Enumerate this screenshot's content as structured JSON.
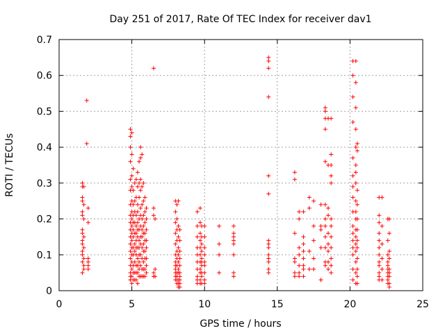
{
  "chart_data": {
    "type": "scatter",
    "title": "Day 251 of 2017, Rate Of TEC Index for receiver dav1",
    "xlabel": "GPS time / hours",
    "ylabel": "ROTI / TECUs",
    "xlim": [
      0,
      25
    ],
    "ylim": [
      0,
      0.7
    ],
    "x_ticks": [
      "0",
      "5",
      "10",
      "15",
      "20",
      "25"
    ],
    "y_ticks": [
      "0",
      "0.1",
      "0.2",
      "0.3",
      "0.4",
      "0.5",
      "0.6",
      "0.7"
    ],
    "grid": true,
    "marker": "+",
    "marker_color": "#ff0000",
    "x": [
      1.6,
      1.6,
      1.6,
      1.6,
      1.6,
      1.6,
      1.6,
      1.6,
      1.6,
      1.6,
      1.6,
      1.6,
      1.6,
      1.6,
      1.7,
      1.7,
      1.7,
      1.7,
      1.7,
      1.7,
      1.7,
      1.7,
      1.9,
      1.9,
      2.0,
      2.0,
      2.0,
      2.0,
      2.0,
      2.0,
      4.9,
      4.9,
      4.9,
      4.9,
      4.9,
      4.9,
      4.9,
      4.9,
      4.9,
      4.9,
      4.9,
      4.9,
      4.9,
      4.9,
      4.9,
      4.9,
      4.9,
      4.9,
      5.0,
      5.0,
      5.0,
      5.0,
      5.0,
      5.0,
      5.0,
      5.0,
      5.0,
      5.0,
      5.0,
      5.0,
      5.0,
      5.0,
      5.0,
      5.0,
      5.1,
      5.1,
      5.1,
      5.1,
      5.1,
      5.1,
      5.1,
      5.1,
      5.1,
      5.1,
      5.1,
      5.1,
      5.2,
      5.2,
      5.2,
      5.2,
      5.2,
      5.2,
      5.2,
      5.2,
      5.2,
      5.2,
      5.3,
      5.3,
      5.3,
      5.3,
      5.3,
      5.3,
      5.3,
      5.3,
      5.3,
      5.3,
      5.3,
      5.4,
      5.4,
      5.4,
      5.4,
      5.4,
      5.4,
      5.4,
      5.4,
      5.4,
      5.4,
      5.4,
      5.4,
      5.5,
      5.5,
      5.5,
      5.5,
      5.5,
      5.5,
      5.5,
      5.5,
      5.5,
      5.5,
      5.5,
      5.6,
      5.6,
      5.6,
      5.6,
      5.6,
      5.6,
      5.6,
      5.6,
      5.6,
      5.6,
      5.6,
      5.6,
      5.7,
      5.7,
      5.7,
      5.7,
      5.7,
      5.7,
      5.7,
      5.7,
      5.7,
      5.7,
      5.8,
      5.8,
      5.8,
      5.8,
      5.8,
      5.8,
      5.8,
      5.8,
      5.8,
      5.8,
      5.9,
      5.9,
      5.9,
      5.9,
      5.9,
      5.9,
      5.9,
      5.9,
      5.9,
      6.0,
      6.0,
      6.0,
      6.0,
      6.0,
      6.0,
      6.0,
      6.0,
      6.5,
      6.5,
      6.5,
      6.5,
      6.5,
      6.6,
      6.6,
      6.6,
      8.0,
      8.0,
      8.0,
      8.0,
      8.0,
      8.0,
      8.0,
      8.0,
      8.0,
      8.0,
      8.0,
      8.0,
      8.1,
      8.1,
      8.1,
      8.1,
      8.1,
      8.1,
      8.1,
      8.1,
      8.1,
      8.1,
      8.1,
      8.2,
      8.2,
      8.2,
      8.2,
      8.2,
      8.2,
      8.2,
      8.2,
      8.2,
      8.2,
      8.2,
      8.3,
      8.3,
      8.3,
      8.3,
      8.3,
      8.3,
      8.3,
      8.3,
      8.3,
      8.3,
      9.5,
      9.5,
      9.5,
      9.5,
      9.5,
      9.5,
      9.5,
      9.5,
      9.5,
      9.5,
      9.7,
      9.7,
      9.7,
      9.7,
      9.7,
      9.7,
      9.7,
      9.7,
      9.7,
      9.7,
      9.7,
      9.8,
      9.8,
      9.8,
      9.8,
      9.8,
      9.8,
      9.8,
      9.8,
      9.8,
      9.8,
      10.0,
      10.0,
      10.0,
      10.0,
      10.0,
      10.0,
      10.0,
      10.0,
      10.0,
      11.0,
      11.0,
      11.0,
      11.0,
      12.0,
      12.0,
      12.0,
      12.0,
      12.0,
      12.0,
      12.0,
      12.0,
      14.4,
      14.4,
      14.4,
      14.4,
      14.4,
      14.4,
      14.4,
      14.4,
      14.4,
      14.4,
      14.4,
      14.4,
      14.4,
      14.4,
      16.2,
      16.2,
      16.2,
      16.2,
      16.2,
      16.2,
      16.2,
      16.5,
      16.5,
      16.5,
      16.5,
      16.5,
      16.5,
      16.5,
      16.8,
      16.8,
      16.8,
      16.8,
      16.8,
      16.8,
      16.8,
      16.8,
      17.2,
      17.2,
      17.2,
      17.2,
      17.5,
      17.5,
      17.5,
      17.5,
      17.5,
      18.0,
      18.0,
      18.0,
      18.0,
      18.0,
      18.0,
      18.3,
      18.3,
      18.3,
      18.3,
      18.3,
      18.3,
      18.3,
      18.3,
      18.3,
      18.3,
      18.3,
      18.3,
      18.5,
      18.5,
      18.5,
      18.5,
      18.5,
      18.5,
      18.5,
      18.5,
      18.5,
      18.7,
      18.7,
      18.7,
      18.7,
      18.7,
      18.7,
      18.7,
      18.7,
      18.7,
      18.7,
      18.7,
      18.7,
      20.2,
      20.2,
      20.2,
      20.2,
      20.2,
      20.2,
      20.2,
      20.2,
      20.2,
      20.2,
      20.2,
      20.2,
      20.2,
      20.2,
      20.2,
      20.2,
      20.4,
      20.4,
      20.4,
      20.4,
      20.4,
      20.4,
      20.4,
      20.4,
      20.4,
      20.4,
      20.4,
      20.4,
      20.4,
      20.4,
      20.4,
      20.4,
      20.4,
      20.4,
      20.5,
      20.5,
      20.5,
      20.5,
      20.5,
      20.5,
      20.5,
      20.5,
      20.5,
      20.5,
      20.5,
      20.5,
      22.0,
      22.0,
      22.0,
      22.0,
      22.0,
      22.0,
      22.0,
      22.0,
      22.0,
      22.0,
      22.0,
      22.0,
      22.2,
      22.2,
      22.2,
      22.2,
      22.2,
      22.2,
      22.6,
      22.6,
      22.6,
      22.6,
      22.6,
      22.6,
      22.6,
      22.6,
      22.6,
      22.6,
      22.7,
      22.7,
      22.7,
      22.7,
      22.7,
      22.7,
      22.7,
      22.7,
      22.7
    ],
    "y": [
      0.3,
      0.29,
      0.26,
      0.25,
      0.22,
      0.21,
      0.17,
      0.16,
      0.14,
      0.13,
      0.11,
      0.1,
      0.08,
      0.05,
      0.29,
      0.24,
      0.2,
      0.15,
      0.12,
      0.09,
      0.07,
      0.06,
      0.53,
      0.41,
      0.23,
      0.19,
      0.09,
      0.08,
      0.07,
      0.06,
      0.45,
      0.43,
      0.4,
      0.36,
      0.31,
      0.28,
      0.24,
      0.21,
      0.19,
      0.17,
      0.15,
      0.13,
      0.11,
      0.09,
      0.07,
      0.05,
      0.04,
      0.03,
      0.44,
      0.38,
      0.32,
      0.29,
      0.25,
      0.22,
      0.2,
      0.18,
      0.16,
      0.14,
      0.12,
      0.1,
      0.08,
      0.06,
      0.04,
      0.02,
      0.34,
      0.28,
      0.24,
      0.21,
      0.19,
      0.17,
      0.15,
      0.12,
      0.1,
      0.07,
      0.05,
      0.03,
      0.3,
      0.25,
      0.22,
      0.19,
      0.16,
      0.13,
      0.11,
      0.08,
      0.05,
      0.03,
      0.31,
      0.26,
      0.21,
      0.18,
      0.16,
      0.14,
      0.12,
      0.1,
      0.07,
      0.05,
      0.03,
      0.33,
      0.29,
      0.24,
      0.22,
      0.19,
      0.17,
      0.15,
      0.12,
      0.09,
      0.07,
      0.05,
      0.02,
      0.36,
      0.3,
      0.26,
      0.2,
      0.17,
      0.14,
      0.12,
      0.1,
      0.08,
      0.06,
      0.04,
      0.4,
      0.37,
      0.31,
      0.28,
      0.23,
      0.21,
      0.18,
      0.15,
      0.13,
      0.1,
      0.07,
      0.04,
      0.38,
      0.29,
      0.24,
      0.2,
      0.17,
      0.15,
      0.12,
      0.09,
      0.06,
      0.04,
      0.3,
      0.25,
      0.21,
      0.18,
      0.16,
      0.13,
      0.11,
      0.08,
      0.06,
      0.04,
      0.26,
      0.22,
      0.19,
      0.16,
      0.14,
      0.11,
      0.09,
      0.06,
      0.04,
      0.23,
      0.2,
      0.17,
      0.14,
      0.12,
      0.09,
      0.07,
      0.05,
      0.62,
      0.23,
      0.21,
      0.05,
      0.04,
      0.2,
      0.06,
      0.04,
      0.25,
      0.22,
      0.19,
      0.16,
      0.13,
      0.1,
      0.08,
      0.07,
      0.06,
      0.05,
      0.04,
      0.03,
      0.24,
      0.2,
      0.17,
      0.14,
      0.11,
      0.09,
      0.07,
      0.05,
      0.04,
      0.03,
      0.02,
      0.25,
      0.18,
      0.15,
      0.12,
      0.1,
      0.08,
      0.06,
      0.05,
      0.03,
      0.02,
      0.01,
      0.17,
      0.14,
      0.11,
      0.09,
      0.07,
      0.05,
      0.04,
      0.03,
      0.02,
      0.01,
      0.22,
      0.18,
      0.15,
      0.12,
      0.1,
      0.08,
      0.06,
      0.04,
      0.03,
      0.02,
      0.23,
      0.19,
      0.16,
      0.14,
      0.12,
      0.1,
      0.08,
      0.06,
      0.05,
      0.03,
      0.02,
      0.18,
      0.15,
      0.13,
      0.11,
      0.09,
      0.08,
      0.07,
      0.05,
      0.04,
      0.02,
      0.18,
      0.15,
      0.12,
      0.1,
      0.08,
      0.07,
      0.05,
      0.03,
      0.02,
      0.18,
      0.13,
      0.1,
      0.05,
      0.18,
      0.16,
      0.15,
      0.14,
      0.13,
      0.1,
      0.05,
      0.04,
      0.65,
      0.64,
      0.62,
      0.54,
      0.32,
      0.27,
      0.14,
      0.13,
      0.12,
      0.1,
      0.09,
      0.08,
      0.06,
      0.05,
      0.33,
      0.31,
      0.16,
      0.09,
      0.08,
      0.05,
      0.04,
      0.22,
      0.2,
      0.12,
      0.1,
      0.07,
      0.05,
      0.04,
      0.22,
      0.15,
      0.13,
      0.11,
      0.09,
      0.07,
      0.06,
      0.04,
      0.26,
      0.23,
      0.11,
      0.06,
      0.25,
      0.18,
      0.14,
      0.09,
      0.06,
      0.24,
      0.18,
      0.17,
      0.12,
      0.03,
      0.03,
      0.51,
      0.5,
      0.48,
      0.45,
      0.36,
      0.24,
      0.2,
      0.18,
      0.15,
      0.12,
      0.08,
      0.07,
      0.48,
      0.35,
      0.23,
      0.21,
      0.16,
      0.13,
      0.11,
      0.08,
      0.06,
      0.48,
      0.38,
      0.35,
      0.32,
      0.3,
      0.2,
      0.18,
      0.15,
      0.12,
      0.09,
      0.07,
      0.05,
      0.64,
      0.6,
      0.54,
      0.47,
      0.37,
      0.32,
      0.29,
      0.26,
      0.22,
      0.18,
      0.16,
      0.14,
      0.12,
      0.1,
      0.06,
      0.03,
      0.64,
      0.58,
      0.51,
      0.45,
      0.4,
      0.35,
      0.33,
      0.3,
      0.25,
      0.22,
      0.2,
      0.17,
      0.15,
      0.13,
      0.11,
      0.08,
      0.05,
      0.02,
      0.41,
      0.39,
      0.28,
      0.24,
      0.2,
      0.17,
      0.14,
      0.12,
      0.09,
      0.06,
      0.04,
      0.02,
      0.26,
      0.21,
      0.19,
      0.16,
      0.14,
      0.12,
      0.1,
      0.08,
      0.07,
      0.05,
      0.04,
      0.03,
      0.26,
      0.18,
      0.13,
      0.09,
      0.06,
      0.03,
      0.2,
      0.14,
      0.1,
      0.08,
      0.07,
      0.06,
      0.05,
      0.04,
      0.03,
      0.02,
      0.2,
      0.16,
      0.11,
      0.09,
      0.06,
      0.05,
      0.04,
      0.02,
      0.01
    ]
  }
}
